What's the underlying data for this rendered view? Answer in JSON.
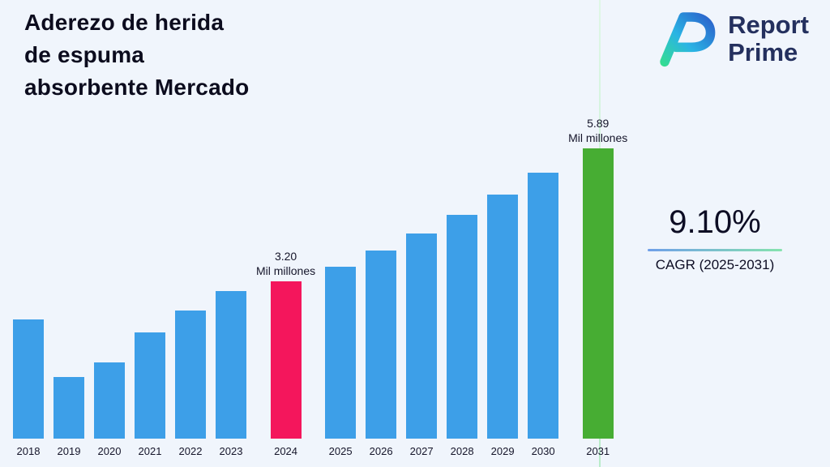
{
  "title": {
    "lines": [
      "Aderezo de herida",
      "de espuma",
      "absorbente Mercado"
    ]
  },
  "logo": {
    "line1": "Report",
    "line2": "Prime"
  },
  "cagr": {
    "value": "9.10%",
    "label": "CAGR (2025-2031)"
  },
  "chart_data": {
    "type": "bar",
    "title": "Aderezo de herida de espuma absorbente Mercado",
    "unit": "Mil millones",
    "categories": [
      "2018",
      "2019",
      "2020",
      "2021",
      "2022",
      "2023",
      "2024",
      "2025",
      "2026",
      "2027",
      "2028",
      "2029",
      "2030",
      "2031"
    ],
    "values": [
      2.42,
      1.25,
      1.55,
      2.15,
      2.6,
      3.0,
      3.2,
      3.49,
      3.81,
      4.16,
      4.54,
      4.95,
      5.4,
      5.89
    ],
    "labeled_points": [
      {
        "category": "2024",
        "value": 3.2,
        "label_lines": [
          "3.20",
          "Mil millones"
        ]
      },
      {
        "category": "2031",
        "value": 5.89,
        "label_lines": [
          "5.89",
          "Mil millones"
        ]
      }
    ],
    "colors": {
      "default": "#3d9fe8",
      "2024": "#f4165c",
      "2031": "#47ad33"
    },
    "ylim": [
      0,
      6.2
    ],
    "grid": false,
    "legend": false
  }
}
